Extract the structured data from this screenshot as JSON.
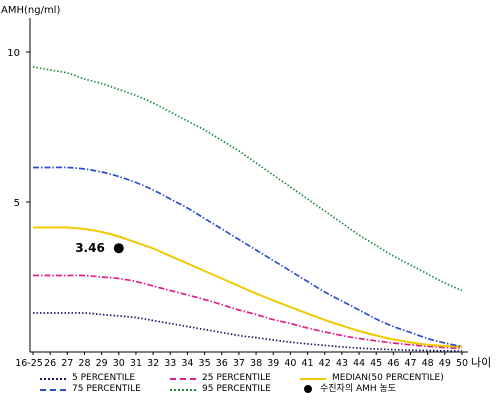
{
  "chart_data": {
    "type": "line",
    "ylabel": "AMH(ng/ml)",
    "xlabel": "나이",
    "ylim": [
      0,
      11
    ],
    "yticks": [
      5,
      10
    ],
    "categories": [
      "16-25",
      "26",
      "27",
      "28",
      "29",
      "30",
      "31",
      "32",
      "33",
      "34",
      "35",
      "36",
      "37",
      "38",
      "39",
      "40",
      "41",
      "42",
      "43",
      "44",
      "45",
      "46",
      "47",
      "48",
      "49",
      "50"
    ],
    "series": [
      {
        "name": "5 PERCENTILE",
        "color": "#1a1a66",
        "dash": "1.5,2",
        "values": [
          1.3,
          1.3,
          1.3,
          1.3,
          1.25,
          1.2,
          1.15,
          1.05,
          0.95,
          0.85,
          0.75,
          0.65,
          0.55,
          0.48,
          0.4,
          0.33,
          0.27,
          0.22,
          0.17,
          0.13,
          0.1,
          0.08,
          0.06,
          0.05,
          0.04,
          0.03
        ]
      },
      {
        "name": "25 PERCENTILE",
        "color": "#e0208a",
        "dash": "6,2,1.5,2",
        "values": [
          2.55,
          2.55,
          2.55,
          2.55,
          2.5,
          2.45,
          2.35,
          2.2,
          2.05,
          1.9,
          1.75,
          1.58,
          1.4,
          1.25,
          1.08,
          0.95,
          0.8,
          0.67,
          0.55,
          0.45,
          0.37,
          0.3,
          0.24,
          0.19,
          0.15,
          0.12
        ]
      },
      {
        "name": "MEDIAN(50 PERCENTILE)",
        "color": "#f2c800",
        "dash": "",
        "values": [
          4.15,
          4.15,
          4.15,
          4.1,
          4.0,
          3.85,
          3.65,
          3.45,
          3.2,
          2.95,
          2.7,
          2.45,
          2.2,
          1.95,
          1.72,
          1.5,
          1.28,
          1.07,
          0.88,
          0.7,
          0.55,
          0.42,
          0.32,
          0.24,
          0.2,
          0.18
        ]
      },
      {
        "name": "75 PERCENTILE",
        "color": "#2b4fc8",
        "dash": "6,2,1.5,2",
        "values": [
          6.15,
          6.15,
          6.15,
          6.1,
          6.0,
          5.85,
          5.65,
          5.4,
          5.1,
          4.8,
          4.45,
          4.1,
          3.75,
          3.4,
          3.05,
          2.7,
          2.35,
          2.0,
          1.7,
          1.4,
          1.1,
          0.85,
          0.65,
          0.45,
          0.3,
          0.18
        ]
      },
      {
        "name": "95 PERCENTILE",
        "color": "#1a8a3a",
        "dash": "1.5,2",
        "values": [
          9.5,
          9.4,
          9.3,
          9.1,
          8.95,
          8.75,
          8.55,
          8.3,
          8.0,
          7.7,
          7.4,
          7.05,
          6.7,
          6.3,
          5.9,
          5.5,
          5.1,
          4.7,
          4.3,
          3.9,
          3.55,
          3.2,
          2.9,
          2.6,
          2.3,
          2.05
        ]
      }
    ],
    "marker": {
      "name": "수진자의 AMH 농도",
      "x": "30",
      "y": 3.46,
      "label": "3.46",
      "color": "#000000"
    },
    "legend": {
      "placement": "bottom",
      "rows": [
        [
          {
            "series": "5 PERCENTILE"
          },
          {
            "series": "25 PERCENTILE"
          },
          {
            "series": "MEDIAN(50 PERCENTILE)"
          }
        ],
        [
          {
            "series": "75 PERCENTILE"
          },
          {
            "series": "95 PERCENTILE"
          },
          {
            "marker": "수진자의 AMH 농도"
          }
        ]
      ]
    },
    "grid": false
  }
}
